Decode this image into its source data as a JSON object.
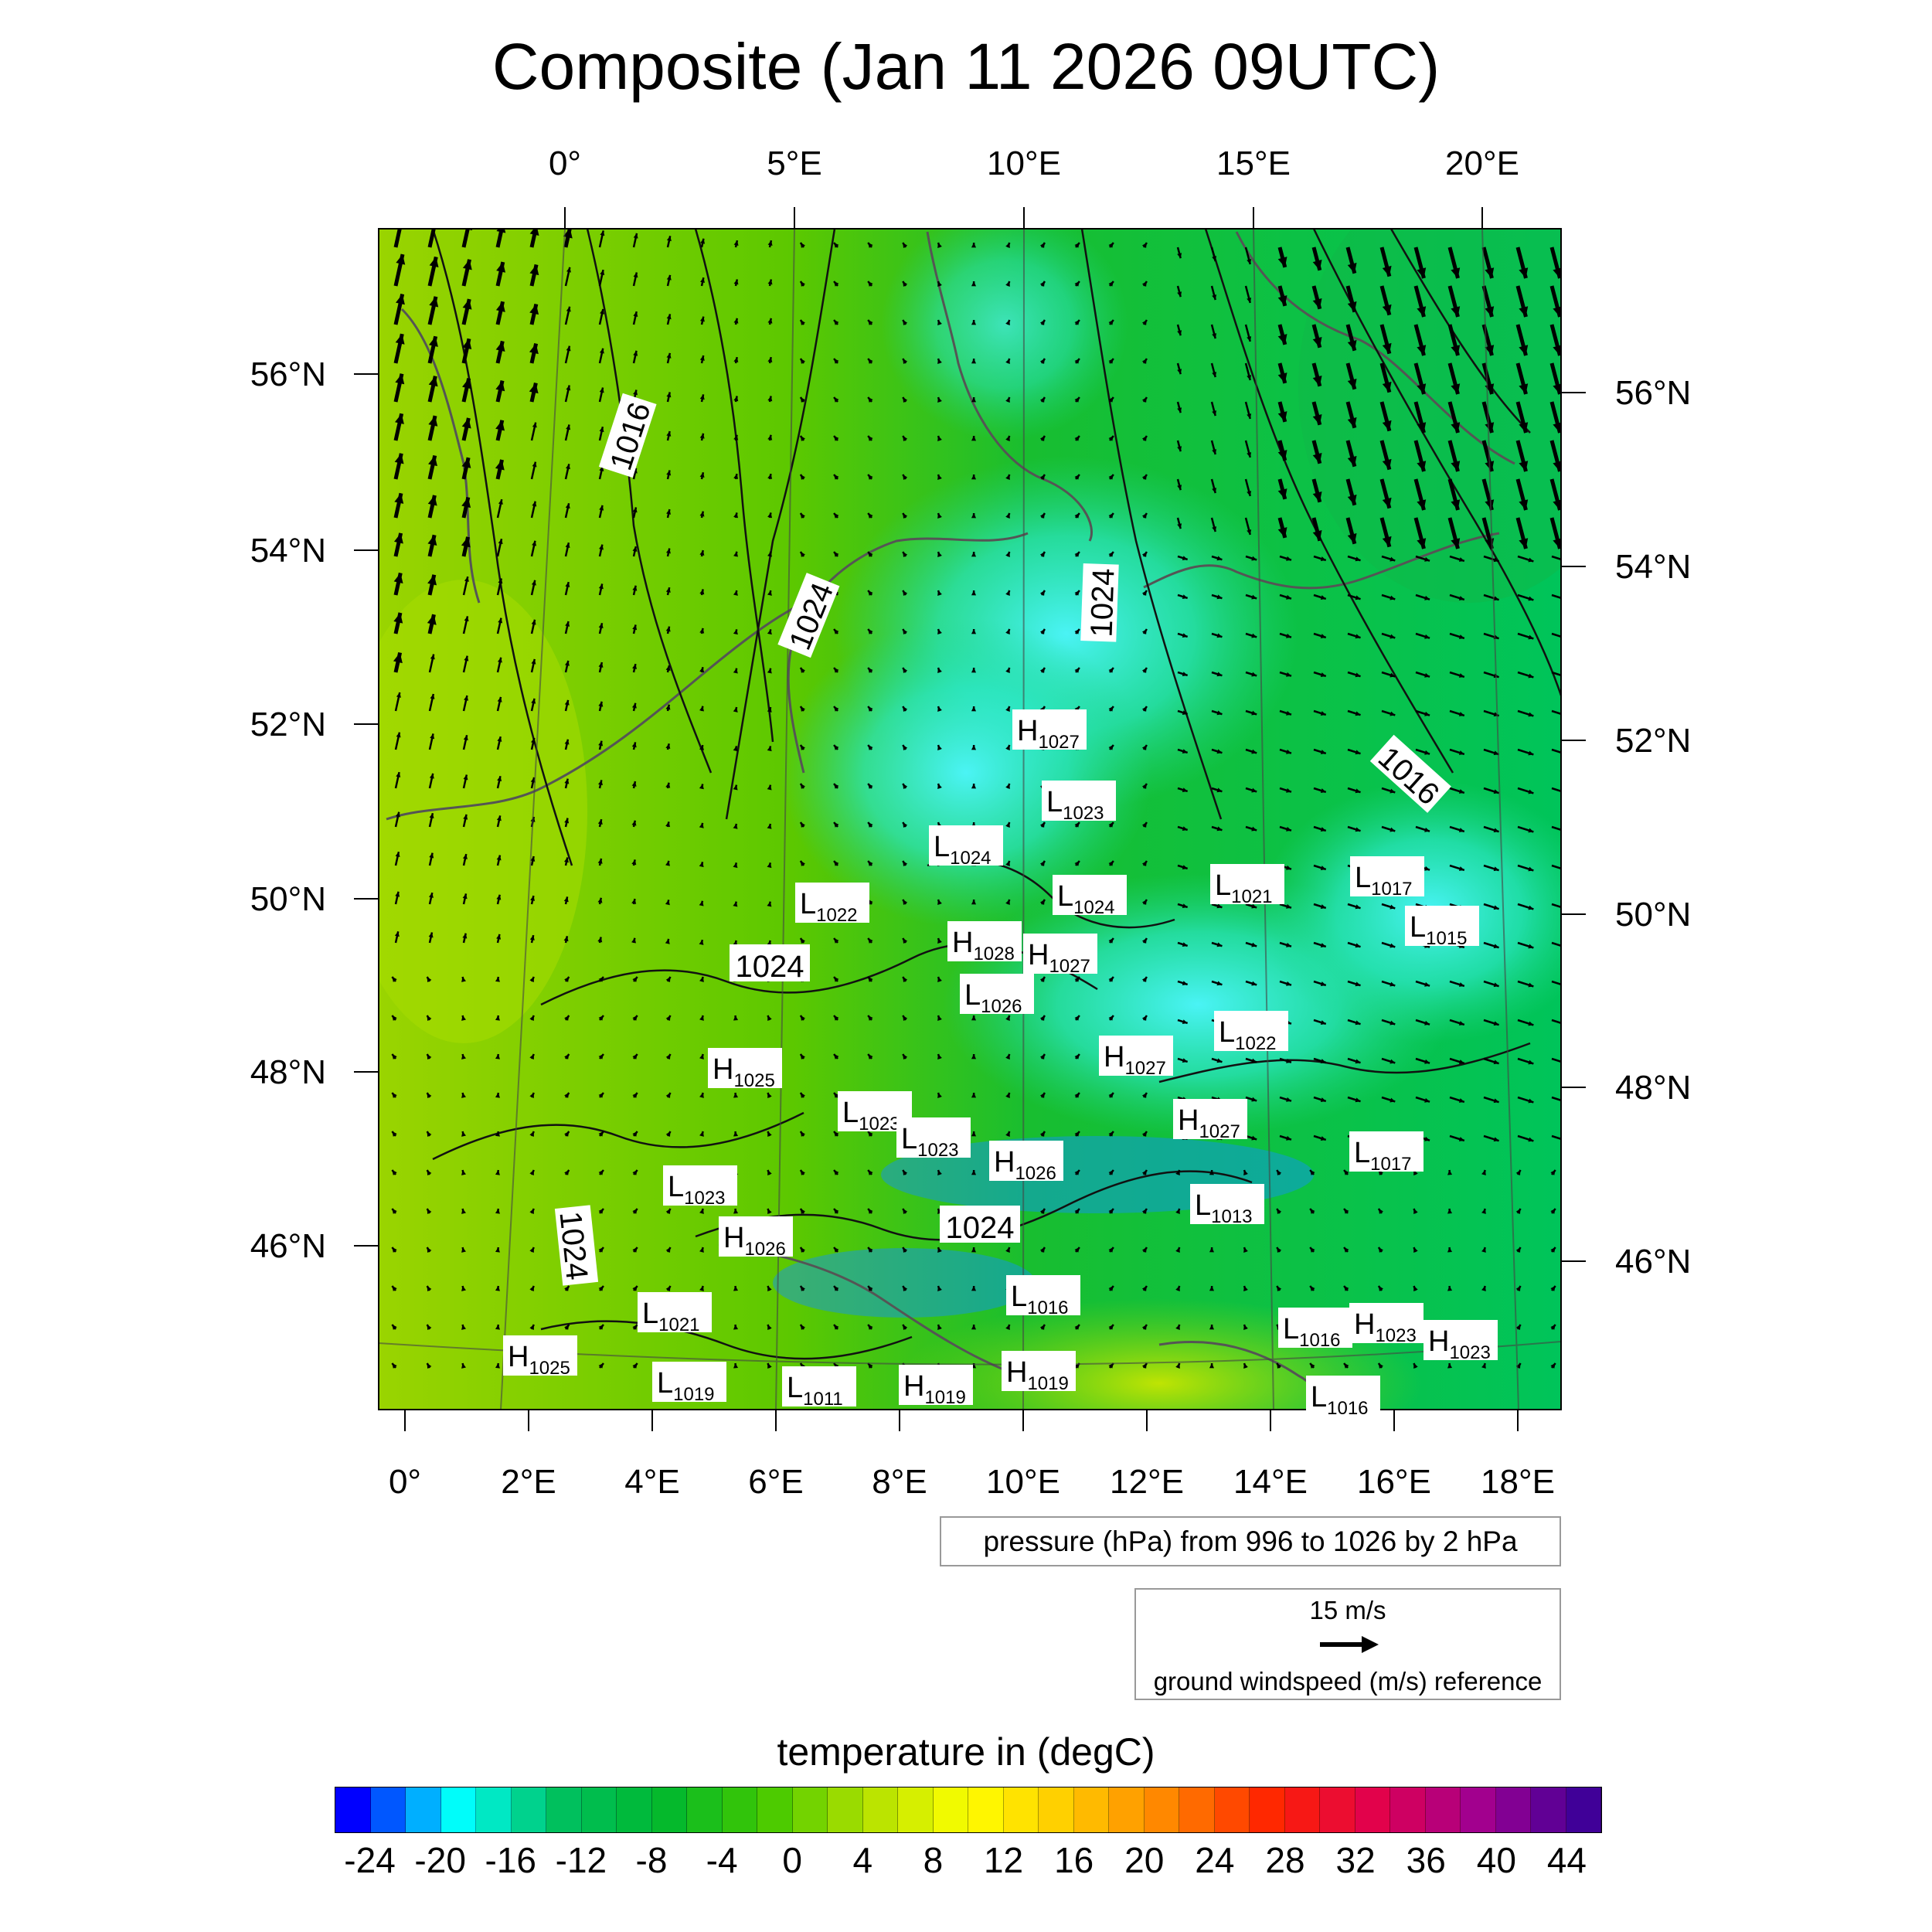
{
  "title": "Composite (Jan 11 2026 09UTC)",
  "map": {
    "top_lon_labels": [
      "0°",
      "5°E",
      "10°E",
      "15°E",
      "20°E"
    ],
    "bottom_lon_labels": [
      "0°",
      "2°E",
      "4°E",
      "6°E",
      "8°E",
      "10°E",
      "12°E",
      "14°E",
      "16°E",
      "18°E"
    ],
    "left_lat_labels": [
      "56°N",
      "54°N",
      "52°N",
      "50°N",
      "48°N",
      "46°N"
    ],
    "right_lat_labels": [
      "56°N",
      "54°N",
      "52°N",
      "50°N",
      "48°N",
      "46°N"
    ],
    "isobar_labels": [
      "1016",
      "1024",
      "1024",
      "1024",
      "1024",
      "1016",
      "1024"
    ],
    "pressure_centers": [
      {
        "type": "H",
        "value": "1027"
      },
      {
        "type": "L",
        "value": "1023"
      },
      {
        "type": "L",
        "value": "1024"
      },
      {
        "type": "L",
        "value": "1024"
      },
      {
        "type": "L",
        "value": "1022"
      },
      {
        "type": "L",
        "value": "1021"
      },
      {
        "type": "L",
        "value": "1017"
      },
      {
        "type": "L",
        "value": "1015"
      },
      {
        "type": "H",
        "value": "1028"
      },
      {
        "type": "H",
        "value": "1027"
      },
      {
        "type": "L",
        "value": "1026"
      },
      {
        "type": "L",
        "value": "1022"
      },
      {
        "type": "H",
        "value": "1027"
      },
      {
        "type": "H",
        "value": "1025"
      },
      {
        "type": "L",
        "value": "1023"
      },
      {
        "type": "L",
        "value": "1023"
      },
      {
        "type": "H",
        "value": "1027"
      },
      {
        "type": "H",
        "value": "1026"
      },
      {
        "type": "L",
        "value": "1017"
      },
      {
        "type": "L",
        "value": "1023"
      },
      {
        "type": "L",
        "value": "1013"
      },
      {
        "type": "H",
        "value": "1026"
      },
      {
        "type": "L",
        "value": "1021"
      },
      {
        "type": "L",
        "value": "1016"
      },
      {
        "type": "L",
        "value": "1016"
      },
      {
        "type": "H",
        "value": "1023"
      },
      {
        "type": "H",
        "value": "1023"
      },
      {
        "type": "H",
        "value": "1025"
      },
      {
        "type": "L",
        "value": "1019"
      },
      {
        "type": "L",
        "value": "1011"
      },
      {
        "type": "H",
        "value": "1019"
      },
      {
        "type": "H",
        "value": "1019"
      },
      {
        "type": "L",
        "value": "1016"
      }
    ]
  },
  "pressure_note": "pressure (hPa) from 996 to 1026 by 2 hPa",
  "wind_reference": {
    "speed": "15 m/s",
    "description": "ground windspeed (m/s) reference"
  },
  "colorbar": {
    "title": "temperature in (degC)",
    "labels": [
      "-24",
      "-20",
      "-16",
      "-12",
      "-8",
      "-4",
      "0",
      "4",
      "8",
      "12",
      "16",
      "20",
      "24",
      "28",
      "32",
      "36",
      "40",
      "44"
    ],
    "min": -26,
    "max": 46,
    "step": 2,
    "colors": [
      "#0000ff",
      "#00ffff",
      "#00c060",
      "#00b830",
      "#40c800",
      "#b0e000",
      "#ffff00",
      "#ffc800",
      "#ff8000",
      "#ff2000",
      "#e00050",
      "#a00090",
      "#400098"
    ]
  }
}
